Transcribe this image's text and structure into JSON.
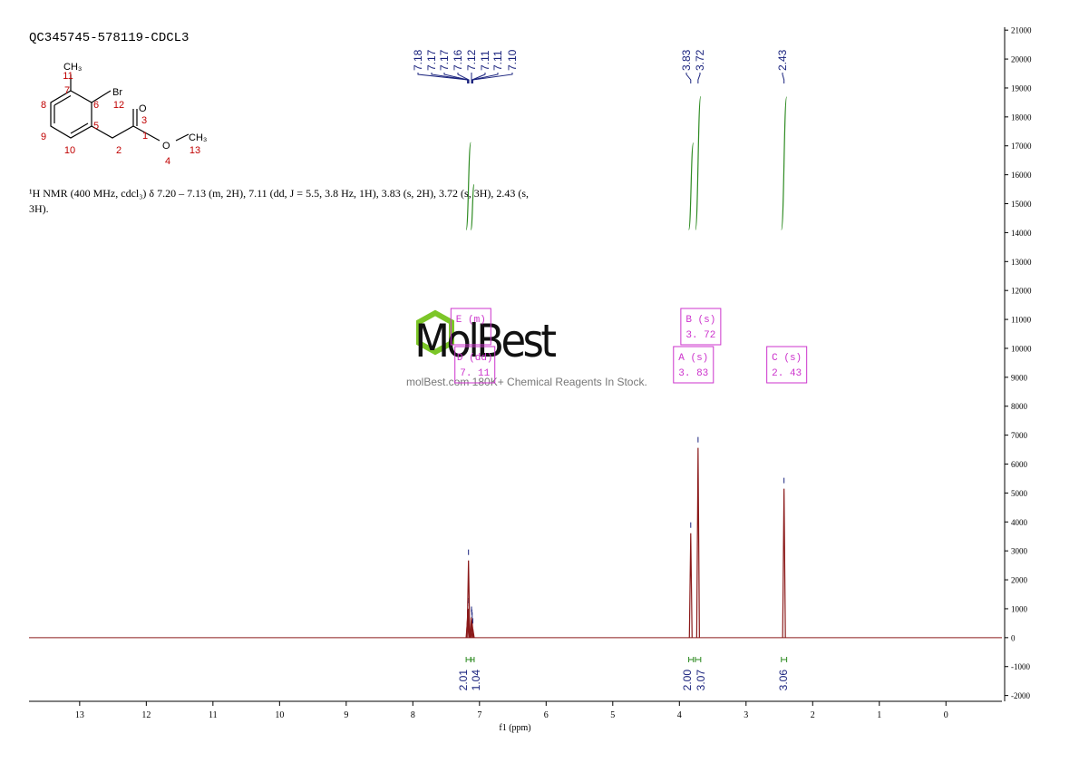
{
  "chart_data": {
    "type": "nmr",
    "title": "QC345745-578119-CDCL3",
    "description": "¹H NMR (400 MHz, cdcl₃) δ 7.20 – 7.13 (m, 2H), 7.11 (dd, J = 5.5, 3.8 Hz, 1H), 3.83 (s, 2H), 3.72 (s, 3H), 2.43 (s, 3H).",
    "xlabel": "f1 (ppm)",
    "xlim": [
      13.76,
      -0.84
    ],
    "xticks": [
      13,
      12,
      11,
      10,
      9,
      8,
      7,
      6,
      5,
      4,
      3,
      2,
      1,
      0
    ],
    "ylim": [
      -2200,
      21100
    ],
    "yticks": [
      -2000,
      -1000,
      0,
      1000,
      2000,
      3000,
      4000,
      5000,
      6000,
      7000,
      8000,
      9000,
      10000,
      11000,
      12000,
      13000,
      14000,
      15000,
      16000,
      17000,
      18000,
      19000,
      20000,
      21000
    ],
    "color": "#8b1a1a",
    "peaks": {
      "x": [
        7.18,
        7.175,
        7.17,
        7.165,
        7.12,
        7.115,
        7.11,
        7.1,
        3.83,
        3.72,
        2.43
      ],
      "values": [
        600,
        900,
        1000,
        2670,
        700,
        600,
        500,
        300,
        3610,
        6560,
        5150
      ]
    },
    "peak_picks": [
      {
        "value": 7.18,
        "label": "7.18"
      },
      {
        "value": 7.17,
        "label": "7.17"
      },
      {
        "value": 7.17,
        "label": "7.17"
      },
      {
        "value": 7.16,
        "label": "7.16"
      },
      {
        "value": 7.12,
        "label": "7.12"
      },
      {
        "value": 7.11,
        "label": "7.11"
      },
      {
        "value": 7.11,
        "label": "7.11"
      },
      {
        "value": 7.1,
        "label": "7.10"
      },
      {
        "value": 3.83,
        "label": "3.83"
      },
      {
        "value": 3.72,
        "label": "3.72"
      },
      {
        "value": 2.43,
        "label": "2.43"
      }
    ],
    "pick_color": "#1a237e",
    "integrals": [
      {
        "range": [
          7.2,
          7.13
        ],
        "value": 2.01,
        "label": "2.01"
      },
      {
        "range": [
          7.13,
          7.08
        ],
        "value": 1.04,
        "label": "1.04"
      },
      {
        "range": [
          3.86,
          3.79
        ],
        "value": 2.0,
        "label": "2.00"
      },
      {
        "range": [
          3.76,
          3.68
        ],
        "value": 3.07,
        "label": "3.07"
      },
      {
        "range": [
          2.47,
          2.39
        ],
        "value": 3.06,
        "label": "3.06"
      }
    ],
    "integral_color": "#2e8b22",
    "multiplets": [
      {
        "name": "E (m)",
        "shift": {
          "value": 7.17
        }
      },
      {
        "name": "D (dd)",
        "shift": {
          "value": 7.11,
          "label": "7. 11"
        }
      },
      {
        "name": "B (s)",
        "shift": {
          "value": 3.72,
          "label": "3. 72"
        }
      },
      {
        "name": "A (s)",
        "shift": {
          "value": 3.83,
          "label": "3. 83"
        }
      },
      {
        "name": "C (s)",
        "shift": {
          "value": 2.43,
          "label": "2. 43"
        }
      }
    ],
    "multiplet_color": "#cc33cc"
  },
  "structure": {
    "atoms": [
      "CH₃",
      "Br",
      "O",
      "O",
      "CH₃"
    ],
    "numbers": [
      "11",
      "7",
      "6",
      "12",
      "8",
      "5",
      "9",
      "10",
      "2",
      "1",
      "3",
      "4",
      "13"
    ]
  },
  "watermark": {
    "brand": "MolBest",
    "tagline": "molBest.com 180K+ Chemical Reagents In Stock."
  }
}
